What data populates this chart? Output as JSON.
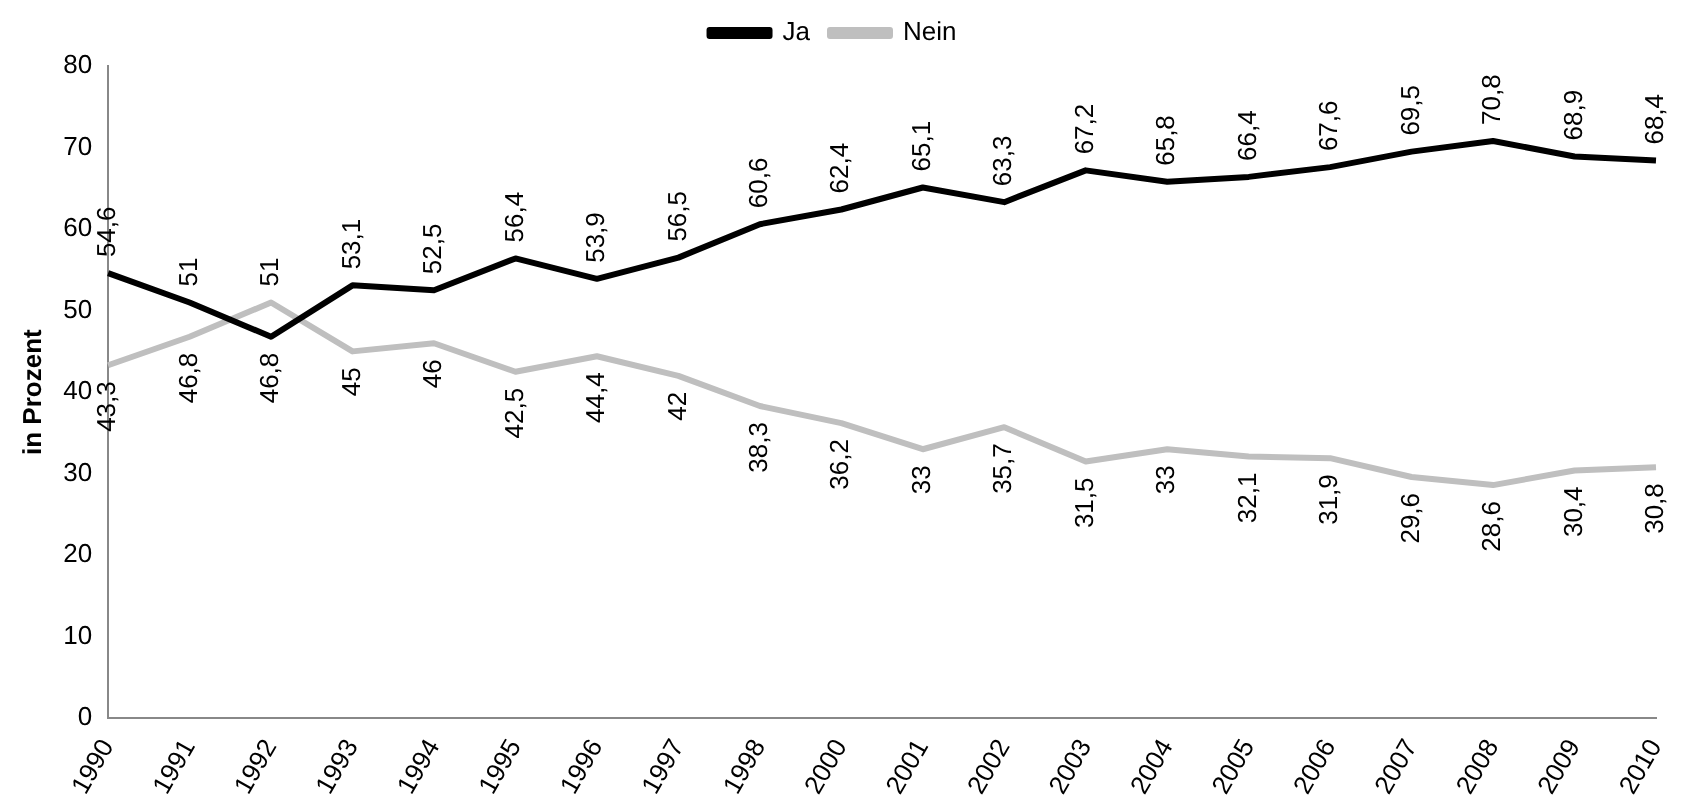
{
  "chart_data": {
    "type": "line",
    "ylabel": "in Prozent",
    "categories": [
      "1990",
      "1991",
      "1992",
      "1993",
      "1994",
      "1995",
      "1996",
      "1997",
      "1998",
      "2000",
      "2001",
      "2002",
      "2003",
      "2004",
      "2005",
      "2006",
      "2007",
      "2008",
      "2009",
      "2010"
    ],
    "series": [
      {
        "name": "Ja",
        "color": "#000000",
        "values": [
          54.6,
          51,
          46.8,
          53.1,
          52.5,
          56.4,
          53.9,
          56.5,
          60.6,
          62.4,
          65.1,
          63.3,
          67.2,
          65.8,
          66.4,
          67.6,
          69.5,
          70.8,
          68.9,
          68.4
        ],
        "value_labels": [
          "54,6",
          "51",
          "46,8",
          "53,1",
          "52,5",
          "56,4",
          "53,9",
          "56,5",
          "60,6",
          "62,4",
          "65,1",
          "63,3",
          "67,2",
          "65,8",
          "66,4",
          "67,6",
          "69,5",
          "70,8",
          "68,9",
          "68,4"
        ]
      },
      {
        "name": "Nein",
        "color": "#bfbfbf",
        "values": [
          43.3,
          46.8,
          51,
          45,
          46,
          42.5,
          44.4,
          42,
          38.3,
          36.2,
          33,
          35.7,
          31.5,
          33,
          32.1,
          31.9,
          29.6,
          28.6,
          30.4,
          30.8
        ],
        "value_labels": [
          "43,3",
          "46,8",
          "51",
          "45",
          "46",
          "42,5",
          "44,4",
          "42",
          "38,3",
          "36,2",
          "33",
          "35,7",
          "31,5",
          "33",
          "32,1",
          "31,9",
          "29,6",
          "28,6",
          "30,4",
          "30,8"
        ]
      }
    ],
    "ylim": [
      0,
      80
    ],
    "yticks": [
      0,
      10,
      20,
      30,
      40,
      50,
      60,
      70,
      80
    ],
    "grid": false,
    "legend": "top",
    "marker": "none",
    "line_style": "solid"
  }
}
